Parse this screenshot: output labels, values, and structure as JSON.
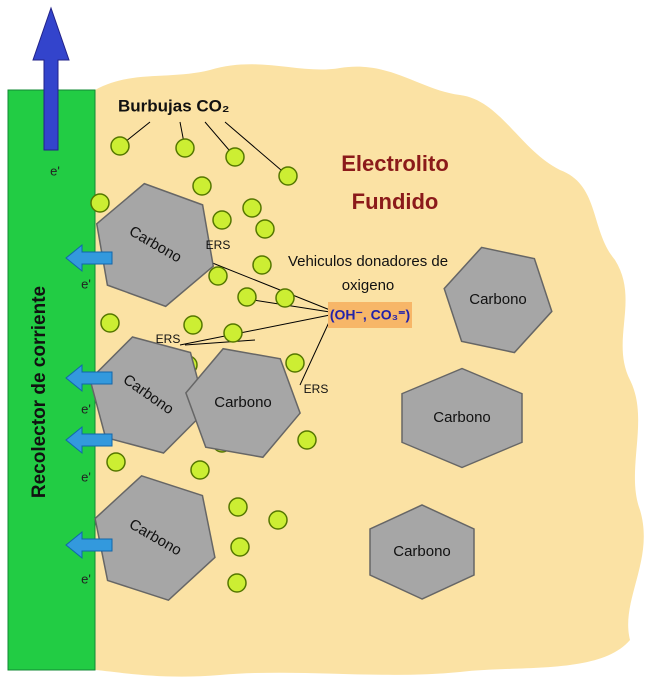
{
  "labels": {
    "bubbles": "Burbujas CO₂",
    "electrolyte": [
      "Electrolito",
      "Fundido"
    ],
    "collector": "Recolector de corriente",
    "vehicles": [
      "Vehiculos donadores de",
      "oxigeno"
    ],
    "ions": "(OH⁻, CO₃⁼)",
    "ers": [
      "ERS",
      "ERS",
      "ERS"
    ],
    "carbon": [
      "Carbono",
      "Carbono",
      "Carbono",
      "Carbono",
      "Carbono",
      "Carbono",
      "Carbono"
    ],
    "electron": [
      "e'",
      "e'",
      "e'",
      "e'",
      "e'"
    ]
  }
}
